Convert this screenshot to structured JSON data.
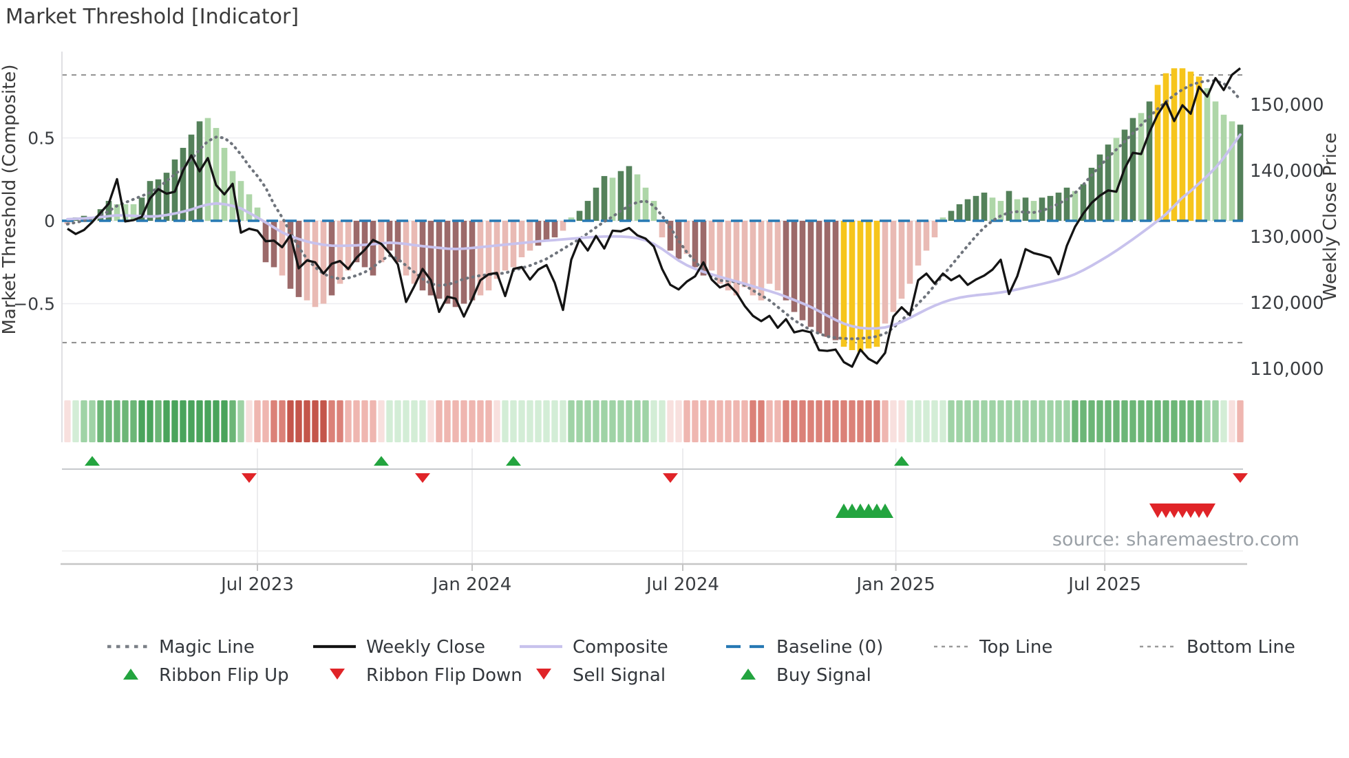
{
  "title": "Market Threshold [Indicator]",
  "source": "source: sharemaestro.com",
  "chart_data": {
    "type": "combo",
    "title": "Market Threshold [Indicator]",
    "source": "source: sharemaestro.com",
    "left_axis": {
      "title": "Market Threshold (Composite)",
      "tick_labels": [
        "0.5",
        "0",
        "−0.5"
      ],
      "tick_values": [
        0.5,
        0,
        -0.5
      ],
      "range": [
        -0.9,
        1.0
      ]
    },
    "right_axis": {
      "title": "Weekly Close Price",
      "tick_labels": [
        "150,000",
        "140,000",
        "130,000",
        "120,000",
        "110,000"
      ],
      "tick_values": [
        150000,
        140000,
        130000,
        120000,
        110000
      ]
    },
    "x_axis": {
      "tick_labels": [
        "Jul 2023",
        "Jan 2024",
        "Jul 2024",
        "Jan 2025",
        "Jul 2025"
      ],
      "tick_weeks": [
        23,
        49,
        74.5,
        100.3,
        125.6
      ]
    },
    "baseline_value": 0,
    "top_line_value": 0.88,
    "bottom_line_value": -0.735,
    "weeks": 143,
    "grid_values": [
      0.5,
      0,
      -0.5
    ],
    "bars": {
      "values": [
        -0.02,
        0.02,
        0.03,
        0.02,
        0.07,
        0.12,
        0.1,
        0.1,
        0.1,
        0.14,
        0.24,
        0.25,
        0.29,
        0.37,
        0.44,
        0.52,
        0.6,
        0.62,
        0.56,
        0.44,
        0.3,
        0.24,
        0.16,
        0.08,
        -0.25,
        -0.28,
        -0.33,
        -0.41,
        -0.46,
        -0.48,
        -0.52,
        -0.5,
        -0.45,
        -0.38,
        -0.3,
        -0.25,
        -0.28,
        -0.33,
        -0.25,
        -0.18,
        -0.25,
        -0.33,
        -0.38,
        -0.42,
        -0.45,
        -0.47,
        -0.5,
        -0.52,
        -0.5,
        -0.48,
        -0.45,
        -0.42,
        -0.35,
        -0.3,
        -0.28,
        -0.22,
        -0.18,
        -0.15,
        -0.12,
        -0.1,
        -0.06,
        0.02,
        0.06,
        0.12,
        0.2,
        0.27,
        0.26,
        0.3,
        0.33,
        0.28,
        0.2,
        0.12,
        -0.1,
        -0.18,
        -0.23,
        -0.2,
        -0.28,
        -0.33,
        -0.3,
        -0.38,
        -0.42,
        -0.45,
        -0.4,
        -0.45,
        -0.48,
        -0.38,
        -0.42,
        -0.48,
        -0.55,
        -0.6,
        -0.64,
        -0.68,
        -0.7,
        -0.72,
        -0.76,
        -0.78,
        -0.79,
        -0.77,
        -0.76,
        -0.62,
        -0.55,
        -0.47,
        -0.38,
        -0.27,
        -0.18,
        -0.1,
        0.02,
        0.06,
        0.1,
        0.13,
        0.15,
        0.17,
        0.14,
        0.12,
        0.18,
        0.13,
        0.14,
        0.12,
        0.14,
        0.15,
        0.17,
        0.2,
        0.18,
        0.22,
        0.32,
        0.4,
        0.46,
        0.5,
        0.55,
        0.62,
        0.65,
        0.72,
        0.82,
        0.89,
        0.92,
        0.92,
        0.9,
        0.87,
        0.8,
        0.72,
        0.64,
        0.6,
        0.58
      ],
      "classes": [
        "lr",
        "dg",
        "dg",
        "lg",
        "dg",
        "dg",
        "lg",
        "lg",
        "lg",
        "dg",
        "dg",
        "dg",
        "dg",
        "dg",
        "dg",
        "dg",
        "dg",
        "lg",
        "lg",
        "lg",
        "lg",
        "lg",
        "lg",
        "lg",
        "dr",
        "dr",
        "lr",
        "dr",
        "dr",
        "lr",
        "lr",
        "lr",
        "dr",
        "lr",
        "lr",
        "dr",
        "dr",
        "dr",
        "lr",
        "dr",
        "dr",
        "lr",
        "lr",
        "dr",
        "dr",
        "dr",
        "dr",
        "dr",
        "dr",
        "dr",
        "lr",
        "lr",
        "lr",
        "lr",
        "lr",
        "lr",
        "lr",
        "dr",
        "dr",
        "dr",
        "lr",
        "lg",
        "dg",
        "dg",
        "dg",
        "dg",
        "lg",
        "dg",
        "dg",
        "lg",
        "lg",
        "lg",
        "lr",
        "dr",
        "dr",
        "lr",
        "dr",
        "dr",
        "lr",
        "lr",
        "lr",
        "lr",
        "lr",
        "lr",
        "lr",
        "lr",
        "lr",
        "dr",
        "dr",
        "dr",
        "dr",
        "dr",
        "dr",
        "dr",
        "au",
        "au",
        "au",
        "au",
        "au",
        "lr",
        "lr",
        "lr",
        "lr",
        "lr",
        "lr",
        "lr",
        "lg",
        "dg",
        "dg",
        "dg",
        "dg",
        "dg",
        "lg",
        "lg",
        "dg",
        "lg",
        "dg",
        "lg",
        "dg",
        "dg",
        "dg",
        "dg",
        "lg",
        "dg",
        "dg",
        "dg",
        "dg",
        "lg",
        "dg",
        "dg",
        "lg",
        "dg",
        "au",
        "au",
        "au",
        "au",
        "au",
        "au",
        "lg",
        "lg",
        "lg",
        "lg",
        "dg"
      ]
    },
    "bar_colors": {
      "dg": "#54815a",
      "lg": "#aed6a8",
      "dr": "#9c6a6a",
      "lr": "#e9bab4",
      "au": "#f6c51c"
    },
    "series": {
      "weekly_close": {
        "color": "#141414",
        "values": [
          131200,
          130400,
          131000,
          132200,
          133600,
          135000,
          138700,
          132300,
          132500,
          133000,
          135800,
          137200,
          136500,
          136800,
          140000,
          142300,
          139900,
          141900,
          137800,
          136400,
          138000,
          130600,
          131200,
          130900,
          129300,
          129400,
          128400,
          130200,
          125200,
          126400,
          126100,
          124400,
          125900,
          126300,
          125100,
          126800,
          128000,
          129500,
          128900,
          127500,
          125800,
          120100,
          122500,
          125100,
          123400,
          118600,
          120900,
          120600,
          117900,
          120500,
          123400,
          124300,
          124500,
          121000,
          125100,
          125400,
          123500,
          125000,
          125700,
          123000,
          118900,
          126500,
          129600,
          127900,
          130100,
          128200,
          130900,
          130800,
          131300,
          130200,
          129700,
          128500,
          125100,
          122700,
          122000,
          123200,
          124000,
          126100,
          123500,
          122300,
          122800,
          121500,
          119500,
          118000,
          117200,
          118000,
          116200,
          117500,
          115500,
          115800,
          115500,
          112800,
          112700,
          112900,
          111000,
          110300,
          112900,
          111500,
          110800,
          112400,
          117900,
          119300,
          118100,
          123400,
          124400,
          122900,
          124400,
          123400,
          124100,
          122700,
          123500,
          124100,
          125000,
          126500,
          121300,
          124000,
          128100,
          127500,
          127200,
          126800,
          124300,
          128600,
          131500,
          133500,
          135100,
          136200,
          137000,
          136800,
          140300,
          142700,
          142500,
          145800,
          148500,
          150400,
          147500,
          149900,
          148600,
          152700,
          151200,
          154000,
          152200,
          154500,
          155500
        ]
      },
      "composite": {
        "color": "#c8c2ed",
        "values": [
          0.01,
          0.012,
          0.015,
          0.018,
          0.022,
          0.028,
          0.033,
          0.032,
          0.03,
          0.028,
          0.026,
          0.028,
          0.035,
          0.044,
          0.055,
          0.068,
          0.085,
          0.098,
          0.105,
          0.1,
          0.09,
          0.075,
          0.048,
          0.02,
          -0.01,
          -0.04,
          -0.07,
          -0.092,
          -0.11,
          -0.125,
          -0.136,
          -0.145,
          -0.15,
          -0.151,
          -0.15,
          -0.148,
          -0.145,
          -0.141,
          -0.136,
          -0.132,
          -0.135,
          -0.14,
          -0.147,
          -0.153,
          -0.158,
          -0.163,
          -0.168,
          -0.17,
          -0.168,
          -0.164,
          -0.159,
          -0.154,
          -0.149,
          -0.144,
          -0.139,
          -0.134,
          -0.129,
          -0.124,
          -0.12,
          -0.116,
          -0.112,
          -0.108,
          -0.104,
          -0.1,
          -0.097,
          -0.095,
          -0.094,
          -0.095,
          -0.098,
          -0.105,
          -0.118,
          -0.14,
          -0.17,
          -0.205,
          -0.24,
          -0.268,
          -0.29,
          -0.308,
          -0.323,
          -0.338,
          -0.352,
          -0.366,
          -0.38,
          -0.395,
          -0.41,
          -0.424,
          -0.44,
          -0.458,
          -0.478,
          -0.498,
          -0.52,
          -0.545,
          -0.572,
          -0.598,
          -0.62,
          -0.636,
          -0.646,
          -0.65,
          -0.649,
          -0.643,
          -0.63,
          -0.61,
          -0.586,
          -0.56,
          -0.535,
          -0.512,
          -0.492,
          -0.476,
          -0.464,
          -0.455,
          -0.449,
          -0.444,
          -0.439,
          -0.432,
          -0.424,
          -0.414,
          -0.403,
          -0.392,
          -0.381,
          -0.369,
          -0.356,
          -0.341,
          -0.322,
          -0.298,
          -0.271,
          -0.242,
          -0.212,
          -0.18,
          -0.146,
          -0.111,
          -0.075,
          -0.038,
          0.0,
          0.04,
          0.09,
          0.14,
          0.18,
          0.225,
          0.27,
          0.32,
          0.38,
          0.45,
          0.52
        ]
      },
      "magic_line": {
        "color": "#6f747c",
        "values": [
          -0.02,
          -0.01,
          0.0,
          0.015,
          0.03,
          0.058,
          0.09,
          0.11,
          0.13,
          0.15,
          0.17,
          0.2,
          0.24,
          0.28,
          0.32,
          0.37,
          0.43,
          0.48,
          0.505,
          0.5,
          0.46,
          0.4,
          0.33,
          0.27,
          0.2,
          0.1,
          0.02,
          -0.07,
          -0.16,
          -0.23,
          -0.28,
          -0.32,
          -0.34,
          -0.35,
          -0.345,
          -0.33,
          -0.31,
          -0.28,
          -0.24,
          -0.21,
          -0.23,
          -0.27,
          -0.31,
          -0.35,
          -0.38,
          -0.39,
          -0.385,
          -0.37,
          -0.35,
          -0.34,
          -0.33,
          -0.325,
          -0.32,
          -0.315,
          -0.3,
          -0.285,
          -0.27,
          -0.25,
          -0.23,
          -0.2,
          -0.17,
          -0.14,
          -0.11,
          -0.075,
          -0.04,
          -0.005,
          0.025,
          0.06,
          0.09,
          0.112,
          0.12,
          0.09,
          0.03,
          -0.04,
          -0.12,
          -0.19,
          -0.245,
          -0.3,
          -0.34,
          -0.36,
          -0.362,
          -0.37,
          -0.39,
          -0.42,
          -0.45,
          -0.48,
          -0.52,
          -0.56,
          -0.6,
          -0.63,
          -0.66,
          -0.68,
          -0.698,
          -0.706,
          -0.71,
          -0.712,
          -0.71,
          -0.705,
          -0.698,
          -0.68,
          -0.645,
          -0.6,
          -0.552,
          -0.5,
          -0.448,
          -0.39,
          -0.33,
          -0.27,
          -0.21,
          -0.15,
          -0.092,
          -0.04,
          0.0,
          0.03,
          0.05,
          0.055,
          0.052,
          0.05,
          0.06,
          0.08,
          0.103,
          0.13,
          0.168,
          0.218,
          0.275,
          0.33,
          0.382,
          0.43,
          0.478,
          0.528,
          0.578,
          0.628,
          0.675,
          0.718,
          0.758,
          0.792,
          0.818,
          0.835,
          0.845,
          0.845,
          0.828,
          0.79,
          0.73
        ]
      }
    },
    "line_colors": {
      "baseline": "#2779b4",
      "top_bottom": "#8c8c8c"
    },
    "ribbon": {
      "palette": {
        "G1": "#d3edd6",
        "G2": "#9fd3a6",
        "G3": "#6cb677",
        "G4": "#4aa45c",
        "R1": "#f8e0de",
        "R2": "#efb6b0",
        "R3": "#db8178",
        "R4": "#c4564b"
      },
      "codes": [
        "R1",
        "G1",
        "G2",
        "G2",
        "G3",
        "G3",
        "G3",
        "G3",
        "G3",
        "G4",
        "G4",
        "G3",
        "G4",
        "G4",
        "G4",
        "G4",
        "G4",
        "G4",
        "G4",
        "G4",
        "G3",
        "G2",
        "R1",
        "R2",
        "R2",
        "R3",
        "R3",
        "R4",
        "R4",
        "R4",
        "R4",
        "R4",
        "R3",
        "R3",
        "R2",
        "R2",
        "R2",
        "R2",
        "R1",
        "G1",
        "G1",
        "G1",
        "G1",
        "G1",
        "R1",
        "R2",
        "R2",
        "R2",
        "R2",
        "R2",
        "R2",
        "R2",
        "R1",
        "G1",
        "G1",
        "G1",
        "G1",
        "G1",
        "G1",
        "G1",
        "G1",
        "G2",
        "G2",
        "G2",
        "G2",
        "G2",
        "G2",
        "G2",
        "G2",
        "G2",
        "G2",
        "G1",
        "G1",
        "R1",
        "R1",
        "R2",
        "R2",
        "R2",
        "R2",
        "R2",
        "R2",
        "R2",
        "R2",
        "R3",
        "R3",
        "R2",
        "R2",
        "R3",
        "R3",
        "R3",
        "R3",
        "R3",
        "R3",
        "R3",
        "R3",
        "R3",
        "R3",
        "R3",
        "R3",
        "R2",
        "R1",
        "R1",
        "G1",
        "G1",
        "G1",
        "G1",
        "G1",
        "G2",
        "G2",
        "G2",
        "G2",
        "G2",
        "G2",
        "G2",
        "G2",
        "G2",
        "G2",
        "G2",
        "G2",
        "G2",
        "G2",
        "G2",
        "G3",
        "G3",
        "G3",
        "G3",
        "G3",
        "G3",
        "G3",
        "G3",
        "G3",
        "G3",
        "G3",
        "G3",
        "G3",
        "G3",
        "G3",
        "G3",
        "G2",
        "G2",
        "G1",
        "R1",
        "R2"
      ]
    },
    "signals": {
      "colors": {
        "up": "#23a43f",
        "down": "#e02428"
      },
      "flip_up_weeks": [
        3,
        38,
        54,
        101
      ],
      "flip_down_weeks": [
        22,
        43,
        73,
        142
      ],
      "buy_weeks": [
        94,
        95,
        96,
        97,
        98,
        99
      ],
      "sell_weeks": [
        132,
        133,
        134,
        135,
        136,
        137,
        138
      ]
    }
  },
  "legend": {
    "rows": [
      [
        {
          "label": "Magic Line",
          "swatch": "dots",
          "color": "#7b8087"
        },
        {
          "label": "Weekly Close",
          "swatch": "solid",
          "color": "#141414"
        },
        {
          "label": "Composite",
          "swatch": "solid",
          "color": "#c8c2ed"
        },
        {
          "label": "Baseline (0)",
          "swatch": "dash",
          "color": "#2779b4"
        },
        {
          "label": "Top Line",
          "swatch": "smalldash",
          "color": "#9a9a9a"
        },
        {
          "label": "Bottom Line",
          "swatch": "smalldash",
          "color": "#9a9a9a"
        }
      ],
      [
        {
          "label": "Ribbon Flip Up",
          "swatch": "tri-up",
          "color": "#23a43f"
        },
        {
          "label": "Ribbon Flip Down",
          "swatch": "tri-down",
          "color": "#e02428"
        },
        {
          "label": "Sell Signal",
          "swatch": "tri-down",
          "color": "#e02428"
        },
        {
          "label": "Buy Signal",
          "swatch": "tri-up",
          "color": "#23a43f"
        }
      ]
    ]
  }
}
